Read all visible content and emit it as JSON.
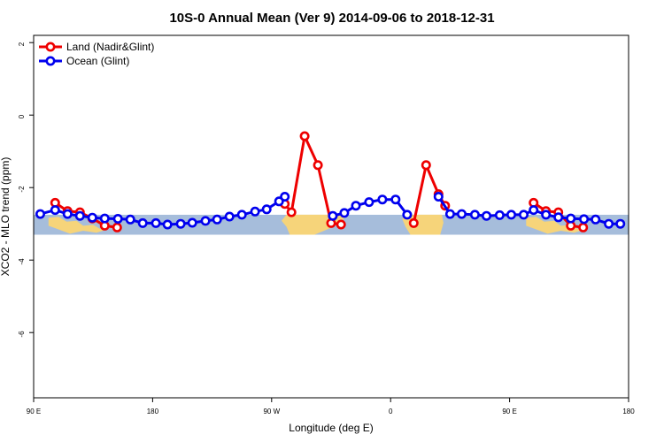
{
  "chart_data": {
    "type": "line",
    "title": "10S-0 Annual Mean (Ver 9)   2014-09-06 to 2018-12-31",
    "xlabel": "Longitude (deg E)",
    "ylabel": "XCO2 - MLO trend (ppm)",
    "xlim": [
      0,
      360
    ],
    "ylim": [
      -7.8,
      2.2
    ],
    "x_ticks": [
      {
        "value": 0,
        "label": "90 E"
      },
      {
        "value": 72,
        "label": "180"
      },
      {
        "value": 144,
        "label": "90 W"
      },
      {
        "value": 216,
        "label": "0"
      },
      {
        "value": 288,
        "label": "90 E"
      },
      {
        "value": 360,
        "label": "180"
      }
    ],
    "y_ticks": [
      {
        "value": 2,
        "label": "2"
      },
      {
        "value": 0,
        "label": "0"
      },
      {
        "value": -2,
        "label": "-2"
      },
      {
        "value": -4,
        "label": "-4"
      },
      {
        "value": -6,
        "label": "-6"
      }
    ],
    "map_band": {
      "ymin": -3.3,
      "ymax": -2.75,
      "ocean_color": "#a6bddb",
      "land_color": "#f6d47a"
    },
    "series": [
      {
        "name": "Land (Nadir&Glint)",
        "color": "#ee0000",
        "segments": [
          [
            [
              13,
              -2.42
            ],
            [
              20.5,
              -2.65
            ],
            [
              28,
              -2.68
            ],
            [
              35.5,
              -2.85
            ],
            [
              43,
              -3.05
            ],
            [
              50.5,
              -3.1
            ]
          ],
          [
            [
              152,
              -2.45
            ],
            [
              156,
              -2.68
            ],
            [
              164,
              -0.58
            ],
            [
              172,
              -1.38
            ],
            [
              180,
              -2.98
            ],
            [
              186,
              -3.02
            ]
          ],
          [
            [
              230,
              -2.98
            ],
            [
              237.5,
              -1.38
            ],
            [
              245,
              -2.18
            ],
            [
              249,
              -2.5
            ]
          ],
          [
            [
              302.5,
              -2.42
            ],
            [
              310,
              -2.65
            ],
            [
              317.5,
              -2.68
            ],
            [
              325,
              -3.05
            ],
            [
              332.5,
              -3.1
            ]
          ]
        ]
      },
      {
        "name": "Ocean (Glint)",
        "color": "#0000ee",
        "segments": [
          [
            [
              4,
              -2.73
            ],
            [
              13,
              -2.62
            ],
            [
              20.5,
              -2.73
            ],
            [
              28,
              -2.78
            ],
            [
              35.5,
              -2.83
            ],
            [
              43,
              -2.85
            ],
            [
              51,
              -2.86
            ],
            [
              58.5,
              -2.88
            ],
            [
              66,
              -2.98
            ],
            [
              74,
              -2.98
            ],
            [
              81,
              -3.02
            ],
            [
              89,
              -3.0
            ],
            [
              96,
              -2.97
            ],
            [
              104,
              -2.92
            ],
            [
              111,
              -2.88
            ],
            [
              118.5,
              -2.8
            ],
            [
              126,
              -2.75
            ],
            [
              134,
              -2.66
            ],
            [
              141,
              -2.6
            ],
            [
              148.5,
              -2.38
            ],
            [
              152,
              -2.25
            ]
          ],
          [
            [
              181,
              -2.78
            ],
            [
              188,
              -2.7
            ],
            [
              195,
              -2.5
            ],
            [
              203,
              -2.4
            ],
            [
              211,
              -2.33
            ],
            [
              219,
              -2.33
            ],
            [
              226,
              -2.75
            ]
          ],
          [
            [
              245,
              -2.25
            ],
            [
              252,
              -2.73
            ],
            [
              259,
              -2.73
            ],
            [
              267,
              -2.75
            ],
            [
              274,
              -2.78
            ],
            [
              282,
              -2.76
            ],
            [
              289,
              -2.75
            ],
            [
              296.5,
              -2.75
            ],
            [
              302.5,
              -2.62
            ],
            [
              310,
              -2.75
            ],
            [
              317.5,
              -2.82
            ],
            [
              325,
              -2.85
            ],
            [
              333,
              -2.87
            ],
            [
              340,
              -2.88
            ],
            [
              348,
              -3.0
            ],
            [
              355,
              -3.0
            ]
          ]
        ]
      }
    ],
    "legend": {
      "position": "top-left",
      "entries": [
        "Land (Nadir&Glint)",
        "Ocean (Glint)"
      ]
    }
  }
}
